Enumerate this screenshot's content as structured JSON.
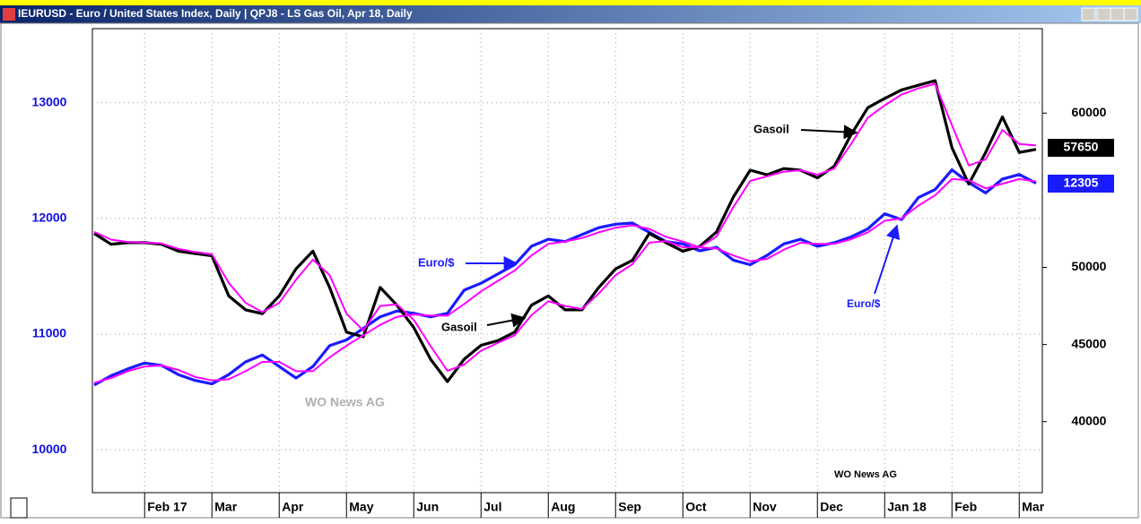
{
  "window_title": "IEURUSD - Euro / United States Index, Daily  |  QPJ8 - LS Gas Oil, Apr 18, Daily",
  "chart_data": {
    "type": "line",
    "categories": [
      null,
      null,
      null,
      "Feb 17",
      null,
      null,
      null,
      "Mar",
      null,
      null,
      null,
      "Apr",
      null,
      null,
      null,
      "May",
      null,
      null,
      null,
      "Jun",
      null,
      null,
      null,
      "Jul",
      null,
      null,
      null,
      "Aug",
      null,
      null,
      null,
      "Sep",
      null,
      null,
      null,
      "Oct",
      null,
      null,
      null,
      "Nov",
      null,
      null,
      null,
      "Dec",
      null,
      null,
      null,
      "Jan 18",
      null,
      null,
      null,
      "Feb",
      null,
      null,
      null,
      "Mar",
      null
    ],
    "series": [
      {
        "color": "#ff00ff",
        "values": [
          10580,
          10620,
          10680,
          10720,
          10730,
          10690,
          10630,
          10600,
          10610,
          10680,
          10760,
          10760,
          10680,
          10680,
          10800,
          10900,
          10990,
          11080,
          11150,
          11170,
          11160,
          11160,
          11260,
          11370,
          11460,
          11550,
          11680,
          11780,
          11800,
          11830,
          11880,
          11920,
          11940,
          11910,
          11840,
          11800,
          11750,
          11740,
          11680,
          11630,
          11650,
          11730,
          11790,
          11780,
          11780,
          11820,
          11880,
          11980,
          12000,
          12110,
          12200,
          12340,
          12330,
          12260,
          12300,
          12340,
          12320
        ]
      },
      {
        "color": "#1a1aff",
        "values": [
          10560,
          10640,
          10700,
          10750,
          10730,
          10650,
          10600,
          10570,
          10650,
          10760,
          10820,
          10720,
          10620,
          10720,
          10900,
          10950,
          11050,
          11150,
          11200,
          11180,
          11150,
          11180,
          11380,
          11440,
          11520,
          11600,
          11760,
          11820,
          11800,
          11860,
          11920,
          11950,
          11960,
          11880,
          11800,
          11780,
          11720,
          11750,
          11640,
          11600,
          11680,
          11780,
          11820,
          11760,
          11790,
          11840,
          11910,
          12040,
          11990,
          12180,
          12250,
          12420,
          12310,
          12220,
          12340,
          12380,
          12305
        ]
      },
      {
        "color": "#ff00ff",
        "axis": "y2",
        "values": [
          52300,
          51800,
          51650,
          51600,
          51550,
          51200,
          51000,
          50850,
          49000,
          47700,
          47100,
          47700,
          49200,
          50500,
          49500,
          47000,
          45900,
          47500,
          47600,
          46600,
          44900,
          43300,
          43700,
          44600,
          45100,
          45600,
          46900,
          47800,
          47500,
          47300,
          48300,
          49500,
          50200,
          51600,
          51700,
          51300,
          51300,
          52000,
          53900,
          55600,
          55900,
          56200,
          56300,
          56000,
          56400,
          58000,
          59700,
          60500,
          61200,
          61600,
          61900,
          59200,
          56600,
          57000,
          58900,
          58000,
          57900
        ]
      },
      {
        "color": "#000000",
        "axis": "y2",
        "values": [
          52200,
          51500,
          51600,
          51600,
          51500,
          51050,
          50900,
          50750,
          48150,
          47250,
          47000,
          48150,
          49900,
          51050,
          48700,
          45800,
          45500,
          48700,
          47550,
          46100,
          44050,
          42600,
          44050,
          44950,
          45250,
          45800,
          47550,
          48150,
          47250,
          47250,
          48700,
          49900,
          50450,
          52200,
          51600,
          51050,
          51350,
          52300,
          54550,
          56300,
          56000,
          56400,
          56300,
          55800,
          56550,
          58600,
          60350,
          60950,
          61500,
          61800,
          62100,
          57750,
          55400,
          57450,
          59750,
          57450,
          57650
        ]
      }
    ],
    "ylim": [
      9630,
      13640
    ],
    "yticks": [
      10000,
      11000,
      12000,
      13000
    ],
    "y2lim": [
      35400,
      65470
    ],
    "y2ticks": [
      40000,
      45000,
      50000,
      60000
    ],
    "grid": true,
    "annotations": [
      "Gasoil",
      "Euro/$",
      "Gasoil",
      "Euro/$",
      "WO News AG",
      "WO News AG"
    ]
  }
}
